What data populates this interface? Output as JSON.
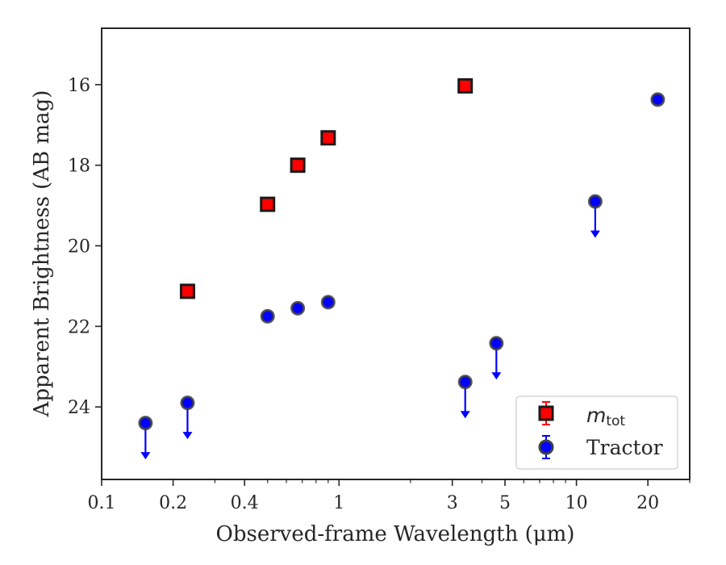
{
  "chart_data": {
    "type": "scatter",
    "xlabel": "Observed-frame Wavelength (μm)",
    "ylabel": "Apparent Brightness (AB mag)",
    "x_scale": "log",
    "y_inverted": true,
    "xlim": [
      0.1,
      30
    ],
    "ylim": [
      25.8,
      14.6
    ],
    "xticks": [
      {
        "value": 0.1,
        "label": "0.1"
      },
      {
        "value": 0.2,
        "label": "0.2"
      },
      {
        "value": 0.4,
        "label": "0.4"
      },
      {
        "value": 1,
        "label": "1"
      },
      {
        "value": 3,
        "label": "3"
      },
      {
        "value": 5,
        "label": "5"
      },
      {
        "value": 10,
        "label": "10"
      },
      {
        "value": 20,
        "label": "20"
      }
    ],
    "yticks": [
      {
        "value": 16,
        "label": "16"
      },
      {
        "value": 18,
        "label": "18"
      },
      {
        "value": 20,
        "label": "20"
      },
      {
        "value": 22,
        "label": "22"
      },
      {
        "value": 24,
        "label": "24"
      }
    ],
    "grid": false,
    "legend_position": "bottom-right",
    "series": [
      {
        "name": "m_tot",
        "legend_main": "m",
        "legend_sub": "tot",
        "marker": "square",
        "color": "#ff0000",
        "edge_color": "#1a1a1a",
        "points": [
          {
            "x": 0.23,
            "y": 21.13
          },
          {
            "x": 0.5,
            "y": 18.97
          },
          {
            "x": 0.67,
            "y": 18.0
          },
          {
            "x": 0.9,
            "y": 17.32
          },
          {
            "x": 3.4,
            "y": 16.03
          }
        ]
      },
      {
        "name": "Tractor",
        "legend_main": "Tractor",
        "marker": "circle",
        "color": "#0000ff",
        "edge_color": "#404040",
        "points": [
          {
            "x": 0.153,
            "y": 24.4,
            "upper_limit": true
          },
          {
            "x": 0.23,
            "y": 23.9,
            "upper_limit": true
          },
          {
            "x": 0.5,
            "y": 21.75
          },
          {
            "x": 0.67,
            "y": 21.55
          },
          {
            "x": 0.9,
            "y": 21.4
          },
          {
            "x": 3.4,
            "y": 23.38,
            "upper_limit": true
          },
          {
            "x": 4.6,
            "y": 22.42,
            "upper_limit": true
          },
          {
            "x": 12.0,
            "y": 18.9,
            "upper_limit": true
          },
          {
            "x": 22.0,
            "y": 16.37
          }
        ]
      }
    ]
  }
}
